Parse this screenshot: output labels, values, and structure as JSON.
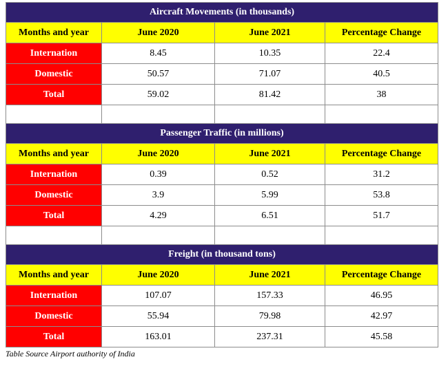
{
  "sections": [
    {
      "title": "Aircraft Movements (in thousands)",
      "headers": [
        "Months and year",
        "June 2020",
        "June 2021",
        "Percentage Change"
      ],
      "rows": [
        {
          "label": "Internation",
          "v2020": "8.45",
          "v2021": "10.35",
          "change": "22.4"
        },
        {
          "label": "Domestic",
          "v2020": "50.57",
          "v2021": "71.07",
          "change": "40.5"
        },
        {
          "label": "Total",
          "v2020": "59.02",
          "v2021": "81.42",
          "change": "38"
        }
      ]
    },
    {
      "title": "Passenger Traffic (in millions)",
      "headers": [
        "Months and year",
        "June 2020",
        "June 2021",
        "Percentage Change"
      ],
      "rows": [
        {
          "label": "Internation",
          "v2020": "0.39",
          "v2021": "0.52",
          "change": "31.2"
        },
        {
          "label": "Domestic",
          "v2020": "3.9",
          "v2021": "5.99",
          "change": "53.8"
        },
        {
          "label": "Total",
          "v2020": "4.29",
          "v2021": "6.51",
          "change": "51.7"
        }
      ]
    },
    {
      "title": "Freight (in thousand tons)",
      "headers": [
        "Months and year",
        "June 2020",
        "June 2021",
        "Percentage Change"
      ],
      "rows": [
        {
          "label": "Internation",
          "v2020": "107.07",
          "v2021": "157.33",
          "change": "46.95"
        },
        {
          "label": "Domestic",
          "v2020": "55.94",
          "v2021": "79.98",
          "change": "42.97"
        },
        {
          "label": "Total",
          "v2020": "163.01",
          "v2021": "237.31",
          "change": "45.58"
        }
      ]
    }
  ],
  "source": "Table Source Airport authority of India",
  "colors": {
    "title_bg": "#2f1f6e",
    "header_bg": "#ffff00",
    "label_bg": "#ff0000"
  }
}
